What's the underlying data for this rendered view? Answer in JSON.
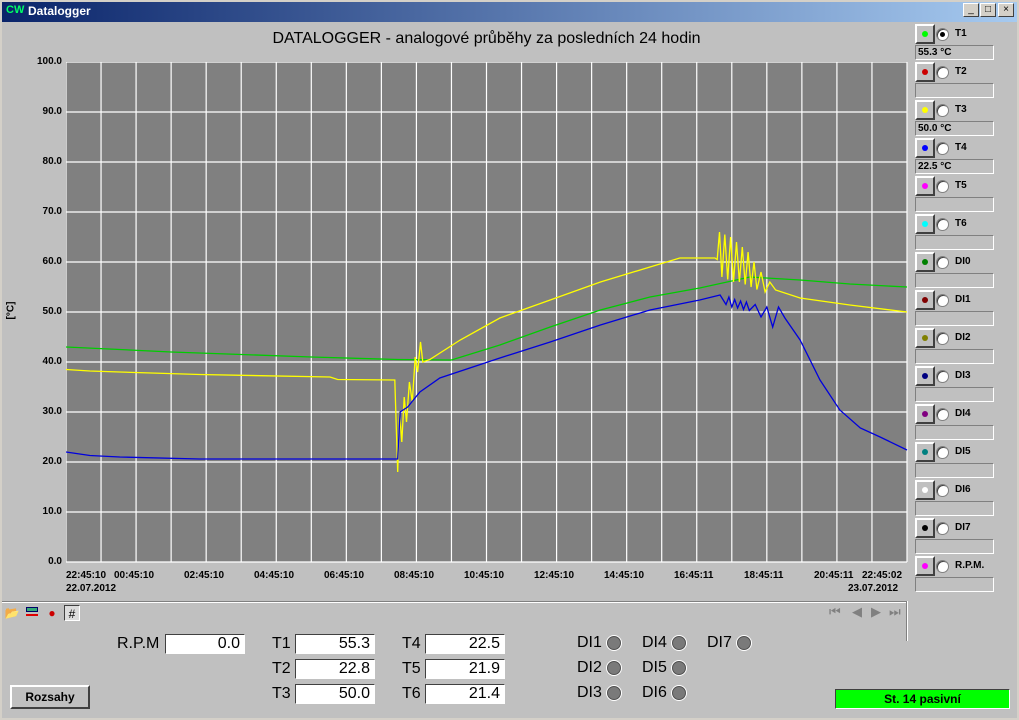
{
  "window": {
    "title": "Datalogger",
    "app_icon": "CW",
    "buttons": [
      "_",
      "□",
      "×"
    ]
  },
  "chart_data": {
    "type": "line",
    "title": "DATALOGGER - analogové průběhy za posledních 24 hodin",
    "ylabel": "[°C]",
    "ylim": [
      0,
      100
    ],
    "yticks": [
      "0.0",
      "10.0",
      "20.0",
      "30.0",
      "40.0",
      "50.0",
      "60.0",
      "70.0",
      "80.0",
      "90.0",
      "100.0"
    ],
    "xlim": [
      "22.07.2012 22:45:10",
      "23.07.2012 22:45:02"
    ],
    "xticks": [
      "22:45:10",
      "00:45:10",
      "02:45:10",
      "04:45:10",
      "06:45:10",
      "08:45:10",
      "10:45:10",
      "12:45:10",
      "14:45:10",
      "16:45:11",
      "18:45:11",
      "20:45:11",
      "22:45:02"
    ],
    "start_date": "22.07.2012",
    "end_date": "23.07.2012",
    "grid": true,
    "background": "#808080",
    "series": [
      {
        "name": "T1",
        "color": "#00cc00",
        "points": [
          [
            "22:45",
            43
          ],
          [
            "00:17",
            42.5
          ],
          [
            "01:45",
            42
          ],
          [
            "03:45",
            41.5
          ],
          [
            "05:45",
            41
          ],
          [
            "08:13",
            40.5
          ],
          [
            "09:45",
            40.4
          ],
          [
            "11:08",
            43.4
          ],
          [
            "12:34",
            47
          ],
          [
            "14:00",
            50.4
          ],
          [
            "15:25",
            53
          ],
          [
            "16:50",
            54.8
          ],
          [
            "18:16",
            57
          ],
          [
            "19:42",
            56.4
          ],
          [
            "21:07",
            55.6
          ],
          [
            "22:45",
            55
          ]
        ]
      },
      {
        "name": "T3",
        "color": "#ffff00",
        "points": [
          [
            "22:45",
            38.5
          ],
          [
            "23:26",
            38.2
          ],
          [
            "00:17",
            38
          ],
          [
            "02:34",
            37.5
          ],
          [
            "06:17",
            37
          ],
          [
            "06:30",
            36.5
          ],
          [
            "08:08",
            36.4
          ],
          [
            "08:13",
            18
          ],
          [
            "08:16",
            30
          ],
          [
            "08:20",
            24
          ],
          [
            "08:24",
            33
          ],
          [
            "08:28",
            28
          ],
          [
            "08:33",
            36
          ],
          [
            "08:38",
            32
          ],
          [
            "08:43",
            41
          ],
          [
            "08:47",
            38
          ],
          [
            "08:52",
            44
          ],
          [
            "08:56",
            40
          ],
          [
            "09:08",
            40.5
          ],
          [
            "10:00",
            44.4
          ],
          [
            "11:08",
            48.8
          ],
          [
            "12:34",
            52.4
          ],
          [
            "14:00",
            56
          ],
          [
            "15:25",
            59
          ],
          [
            "16:16",
            60.8
          ],
          [
            "17:16",
            60.8
          ],
          [
            "17:20",
            60.5
          ],
          [
            "17:24",
            66
          ],
          [
            "17:28",
            57
          ],
          [
            "17:33",
            65.5
          ],
          [
            "17:38",
            56.5
          ],
          [
            "17:43",
            65
          ],
          [
            "17:48",
            56
          ],
          [
            "17:53",
            64
          ],
          [
            "17:58",
            56
          ],
          [
            "18:03",
            63
          ],
          [
            "18:08",
            55.5
          ],
          [
            "18:13",
            62
          ],
          [
            "18:18",
            55
          ],
          [
            "18:23",
            60
          ],
          [
            "18:28",
            54.5
          ],
          [
            "18:35",
            58
          ],
          [
            "18:42",
            54
          ],
          [
            "18:50",
            56
          ],
          [
            "19:00",
            54.4
          ],
          [
            "19:42",
            52.8
          ],
          [
            "21:07",
            51.4
          ],
          [
            "22:45",
            50
          ]
        ]
      },
      {
        "name": "T4",
        "color": "#0000dd",
        "points": [
          [
            "22:45",
            22
          ],
          [
            "23:26",
            21.3
          ],
          [
            "00:17",
            21
          ],
          [
            "02:34",
            20.6
          ],
          [
            "08:08",
            20.6
          ],
          [
            "08:13",
            20.6
          ],
          [
            "08:17",
            30
          ],
          [
            "08:30",
            31
          ],
          [
            "08:51",
            34
          ],
          [
            "09:25",
            36.8
          ],
          [
            "11:08",
            40.8
          ],
          [
            "12:34",
            44
          ],
          [
            "14:00",
            47.4
          ],
          [
            "15:25",
            50.4
          ],
          [
            "16:50",
            52.4
          ],
          [
            "17:25",
            53.4
          ],
          [
            "17:35",
            51.5
          ],
          [
            "17:40",
            53
          ],
          [
            "17:45",
            51
          ],
          [
            "17:50",
            52.5
          ],
          [
            "17:55",
            50.8
          ],
          [
            "18:00",
            52.2
          ],
          [
            "18:05",
            50.5
          ],
          [
            "18:10",
            52
          ],
          [
            "18:15",
            50.3
          ],
          [
            "18:25",
            51.5
          ],
          [
            "18:35",
            49
          ],
          [
            "18:45",
            51
          ],
          [
            "18:55",
            47
          ],
          [
            "19:05",
            51
          ],
          [
            "19:16",
            48.8
          ],
          [
            "19:42",
            44.4
          ],
          [
            "20:16",
            36.4
          ],
          [
            "20:50",
            30.4
          ],
          [
            "21:25",
            26.8
          ],
          [
            "21:59",
            25
          ],
          [
            "22:45",
            22.4
          ]
        ]
      }
    ]
  },
  "sidebar": {
    "items": [
      {
        "label": "T1",
        "color": "#00ff00",
        "value": "55.3 °C",
        "selected": true
      },
      {
        "label": "T2",
        "color": "#cc0000",
        "value": ""
      },
      {
        "label": "T3",
        "color": "#ffff00",
        "value": "50.0 °C"
      },
      {
        "label": "T4",
        "color": "#0000ff",
        "value": "22.5 °C"
      },
      {
        "label": "T5",
        "color": "#ff00ff",
        "value": ""
      },
      {
        "label": "T6",
        "color": "#00ffff",
        "value": ""
      },
      {
        "label": "DI0",
        "color": "#008000",
        "value": ""
      },
      {
        "label": "DI1",
        "color": "#800000",
        "value": ""
      },
      {
        "label": "DI2",
        "color": "#808000",
        "value": ""
      },
      {
        "label": "DI3",
        "color": "#000080",
        "value": ""
      },
      {
        "label": "DI4",
        "color": "#800080",
        "value": ""
      },
      {
        "label": "DI5",
        "color": "#008080",
        "value": ""
      },
      {
        "label": "DI6",
        "color": "#ffffff",
        "value": ""
      },
      {
        "label": "DI7",
        "color": "#000000",
        "value": ""
      },
      {
        "label": "R.P.M.",
        "color": "#ff00ff",
        "value": ""
      }
    ]
  },
  "toolbar": {
    "icons": [
      "folder-open-icon",
      "range-icon",
      "lock-icon",
      "grid-icon"
    ],
    "nav": [
      "⏮",
      "◀",
      "▶",
      "⏭"
    ]
  },
  "readouts": {
    "rpm": {
      "label": "R.P.M",
      "value": "0.0"
    },
    "temps": [
      {
        "label": "T1",
        "value": "55.3"
      },
      {
        "label": "T2",
        "value": "22.8"
      },
      {
        "label": "T3",
        "value": "50.0"
      },
      {
        "label": "T4",
        "value": "22.5"
      },
      {
        "label": "T5",
        "value": "21.9"
      },
      {
        "label": "T6",
        "value": "21.4"
      }
    ],
    "di": [
      "DI1",
      "DI2",
      "DI3",
      "DI4",
      "DI5",
      "DI6",
      "DI7"
    ]
  },
  "rozsahy_label": "Rozsahy",
  "status": {
    "text": "St. 14 pasivní",
    "color": "#00ff00"
  }
}
